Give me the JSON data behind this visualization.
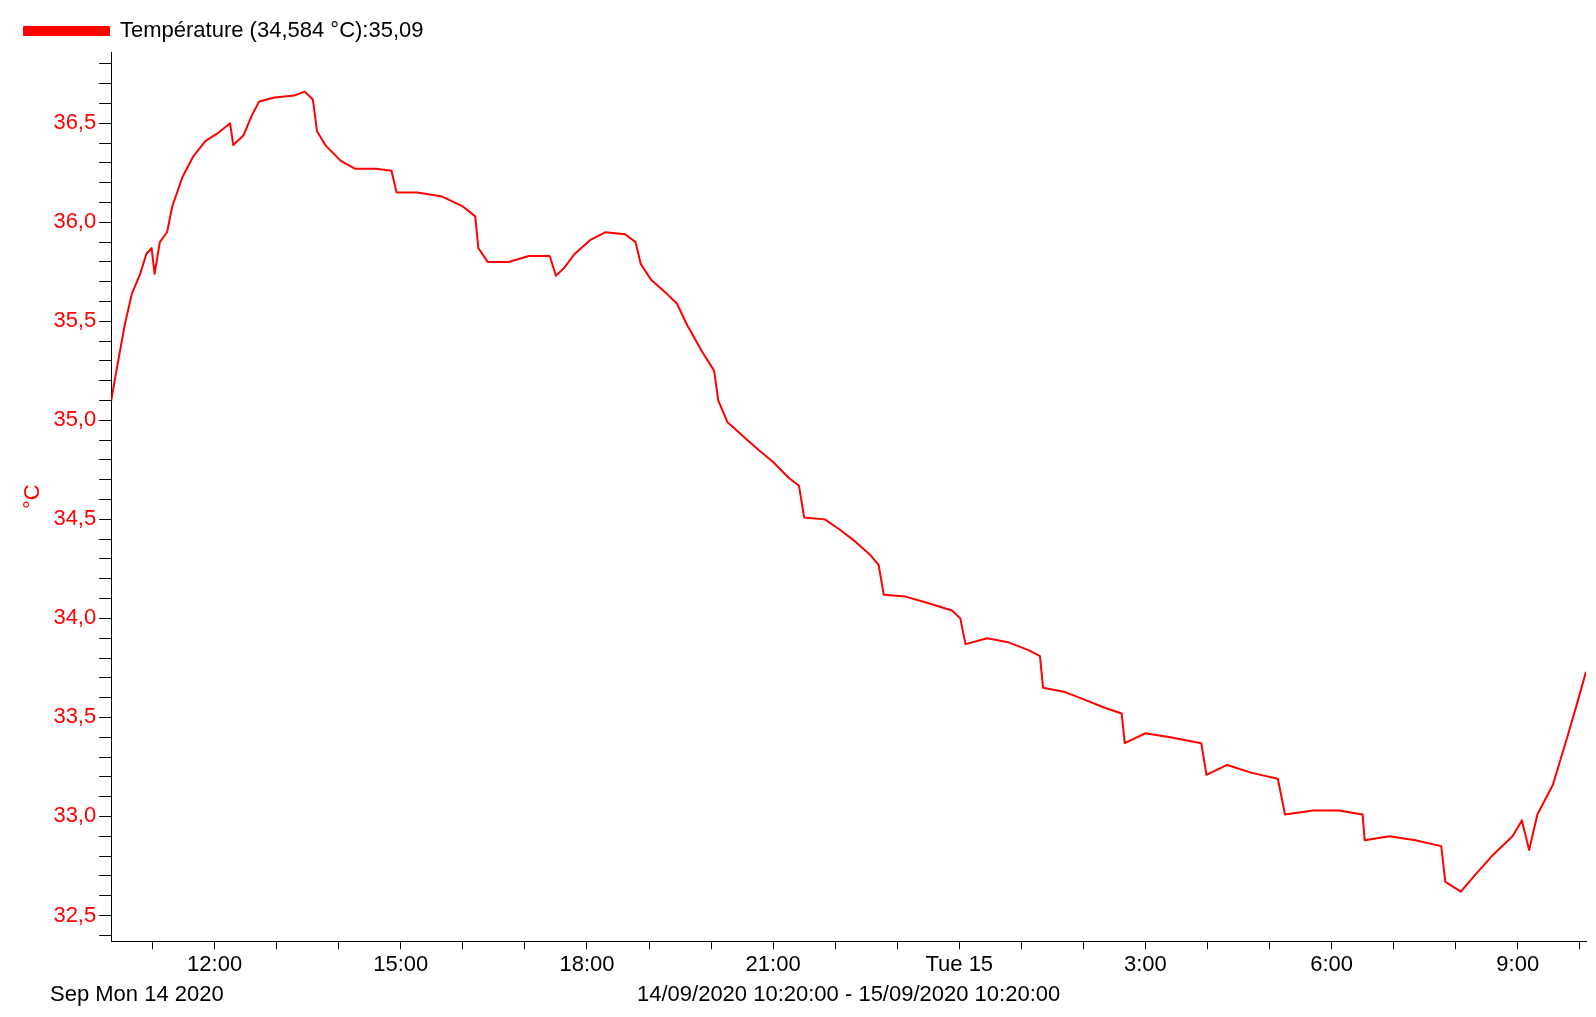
{
  "chart_data": {
    "type": "line",
    "xlabel": "14/09/2020 10:20:00 - 15/09/2020 10:20:00",
    "ylabel": "°C",
    "legend": "top left",
    "grid": false,
    "marker": "none",
    "line_style": "solid",
    "annotations": [
      "Sep Mon 14 2020"
    ],
    "xlim": [
      "2020-09-14T10:20",
      "2020-09-15T10:06"
    ],
    "xticks": [
      {
        "value": "2020-09-14T11:00",
        "label": null
      },
      {
        "value": "2020-09-14T12:00",
        "label": "12:00"
      },
      {
        "value": "2020-09-14T13:00",
        "label": null
      },
      {
        "value": "2020-09-14T14:00",
        "label": null
      },
      {
        "value": "2020-09-14T15:00",
        "label": "15:00"
      },
      {
        "value": "2020-09-14T16:00",
        "label": null
      },
      {
        "value": "2020-09-14T17:00",
        "label": null
      },
      {
        "value": "2020-09-14T18:00",
        "label": "18:00"
      },
      {
        "value": "2020-09-14T19:00",
        "label": null
      },
      {
        "value": "2020-09-14T20:00",
        "label": null
      },
      {
        "value": "2020-09-14T21:00",
        "label": "21:00"
      },
      {
        "value": "2020-09-14T22:00",
        "label": null
      },
      {
        "value": "2020-09-14T23:00",
        "label": null
      },
      {
        "value": "2020-09-15T00:00",
        "label": "Tue 15"
      },
      {
        "value": "2020-09-15T01:00",
        "label": null
      },
      {
        "value": "2020-09-15T02:00",
        "label": null
      },
      {
        "value": "2020-09-15T03:00",
        "label": "3:00"
      },
      {
        "value": "2020-09-15T04:00",
        "label": null
      },
      {
        "value": "2020-09-15T05:00",
        "label": null
      },
      {
        "value": "2020-09-15T06:00",
        "label": "6:00"
      },
      {
        "value": "2020-09-15T07:00",
        "label": null
      },
      {
        "value": "2020-09-15T08:00",
        "label": null
      },
      {
        "value": "2020-09-15T09:00",
        "label": "9:00"
      },
      {
        "value": "2020-09-15T10:00",
        "label": null
      }
    ],
    "ylim": [
      32.37,
      36.86
    ],
    "yticks": [
      {
        "value": 32.4,
        "label": null
      },
      {
        "value": 32.5,
        "label": "32,5"
      },
      {
        "value": 32.6,
        "label": null
      },
      {
        "value": 32.7,
        "label": null
      },
      {
        "value": 32.8,
        "label": null
      },
      {
        "value": 32.9,
        "label": null
      },
      {
        "value": 33.0,
        "label": "33,0"
      },
      {
        "value": 33.1,
        "label": null
      },
      {
        "value": 33.2,
        "label": null
      },
      {
        "value": 33.3,
        "label": null
      },
      {
        "value": 33.4,
        "label": null
      },
      {
        "value": 33.5,
        "label": "33,5"
      },
      {
        "value": 33.6,
        "label": null
      },
      {
        "value": 33.7,
        "label": null
      },
      {
        "value": 33.8,
        "label": null
      },
      {
        "value": 33.9,
        "label": null
      },
      {
        "value": 34.0,
        "label": "34,0"
      },
      {
        "value": 34.1,
        "label": null
      },
      {
        "value": 34.2,
        "label": null
      },
      {
        "value": 34.3,
        "label": null
      },
      {
        "value": 34.4,
        "label": null
      },
      {
        "value": 34.5,
        "label": "34,5"
      },
      {
        "value": 34.6,
        "label": null
      },
      {
        "value": 34.7,
        "label": null
      },
      {
        "value": 34.8,
        "label": null
      },
      {
        "value": 34.9,
        "label": null
      },
      {
        "value": 35.0,
        "label": "35,0"
      },
      {
        "value": 35.1,
        "label": null
      },
      {
        "value": 35.2,
        "label": null
      },
      {
        "value": 35.3,
        "label": null
      },
      {
        "value": 35.4,
        "label": null
      },
      {
        "value": 35.5,
        "label": "35,5"
      },
      {
        "value": 35.6,
        "label": null
      },
      {
        "value": 35.7,
        "label": null
      },
      {
        "value": 35.8,
        "label": null
      },
      {
        "value": 35.9,
        "label": null
      },
      {
        "value": 36.0,
        "label": "36,0"
      },
      {
        "value": 36.1,
        "label": null
      },
      {
        "value": 36.2,
        "label": null
      },
      {
        "value": 36.3,
        "label": null
      },
      {
        "value": 36.4,
        "label": null
      },
      {
        "value": 36.5,
        "label": "36,5"
      },
      {
        "value": 36.6,
        "label": null
      },
      {
        "value": 36.7,
        "label": null
      },
      {
        "value": 36.8,
        "label": null
      }
    ],
    "x": [
      "2020-09-14T10:20",
      "2020-09-14T10:25",
      "2020-09-14T10:33",
      "2020-09-14T10:40",
      "2020-09-14T10:48",
      "2020-09-14T10:54",
      "2020-09-14T10:59",
      "2020-09-14T11:02",
      "2020-09-14T11:07",
      "2020-09-14T11:14",
      "2020-09-14T11:19",
      "2020-09-14T11:29",
      "2020-09-14T11:39",
      "2020-09-14T11:51",
      "2020-09-14T12:03",
      "2020-09-14T12:15",
      "2020-09-14T12:18",
      "2020-09-14T12:28",
      "2020-09-14T12:36",
      "2020-09-14T12:43",
      "2020-09-14T12:58",
      "2020-09-14T13:17",
      "2020-09-14T13:27",
      "2020-09-14T13:35",
      "2020-09-14T13:39",
      "2020-09-14T13:47",
      "2020-09-14T14:02",
      "2020-09-14T14:16",
      "2020-09-14T14:36",
      "2020-09-14T14:51",
      "2020-09-14T14:56",
      "2020-09-14T15:16",
      "2020-09-14T15:40",
      "2020-09-14T16:00",
      "2020-09-14T16:12",
      "2020-09-14T16:15",
      "2020-09-14T16:24",
      "2020-09-14T16:44",
      "2020-09-14T17:04",
      "2020-09-14T17:24",
      "2020-09-14T17:30",
      "2020-09-14T17:38",
      "2020-09-14T17:48",
      "2020-09-14T18:03",
      "2020-09-14T18:18",
      "2020-09-14T18:37",
      "2020-09-14T18:47",
      "2020-09-14T18:52",
      "2020-09-14T19:02",
      "2020-09-14T19:17",
      "2020-09-14T19:27",
      "2020-09-14T19:37",
      "2020-09-14T19:51",
      "2020-09-14T20:03",
      "2020-09-14T20:07",
      "2020-09-14T20:16",
      "2020-09-14T20:31",
      "2020-09-14T20:46",
      "2020-09-14T21:00",
      "2020-09-14T21:15",
      "2020-09-14T21:25",
      "2020-09-14T21:30",
      "2020-09-14T21:50",
      "2020-09-14T22:04",
      "2020-09-14T22:19",
      "2020-09-14T22:34",
      "2020-09-14T22:42",
      "2020-09-14T22:47",
      "2020-09-14T23:08",
      "2020-09-14T23:28",
      "2020-09-14T23:53",
      "2020-09-15T00:01",
      "2020-09-15T00:06",
      "2020-09-15T00:27",
      "2020-09-15T00:47",
      "2020-09-15T01:07",
      "2020-09-15T01:18",
      "2020-09-15T01:21",
      "2020-09-15T01:41",
      "2020-09-15T02:01",
      "2020-09-15T02:20",
      "2020-09-15T02:37",
      "2020-09-15T02:40",
      "2020-09-15T03:00",
      "2020-09-15T03:24",
      "2020-09-15T03:54",
      "2020-09-15T03:59",
      "2020-09-15T04:19",
      "2020-09-15T04:43",
      "2020-09-15T05:08",
      "2020-09-15T05:15",
      "2020-09-15T05:42",
      "2020-09-15T06:07",
      "2020-09-15T06:30",
      "2020-09-15T06:32",
      "2020-09-15T06:56",
      "2020-09-15T07:21",
      "2020-09-15T07:46",
      "2020-09-15T07:50",
      "2020-09-15T08:05",
      "2020-09-15T08:18",
      "2020-09-15T08:35",
      "2020-09-15T08:55",
      "2020-09-15T09:04",
      "2020-09-15T09:11",
      "2020-09-15T09:19",
      "2020-09-15T09:34",
      "2020-09-15T09:49",
      "2020-09-15T09:59",
      "2020-09-15T10:06"
    ],
    "series": [
      {
        "name": "Température (34,584 °C):35,09",
        "color": "#ff0000",
        "values": [
          35.1,
          35.25,
          35.48,
          35.64,
          35.74,
          35.84,
          35.87,
          35.74,
          35.9,
          35.95,
          36.08,
          36.23,
          36.33,
          36.41,
          36.45,
          36.5,
          36.39,
          36.44,
          36.54,
          36.61,
          36.63,
          36.64,
          36.66,
          36.62,
          36.46,
          36.39,
          36.31,
          36.27,
          36.27,
          36.26,
          36.15,
          36.15,
          36.13,
          36.08,
          36.03,
          35.87,
          35.8,
          35.8,
          35.83,
          35.83,
          35.73,
          35.77,
          35.84,
          35.91,
          35.95,
          35.94,
          35.9,
          35.79,
          35.71,
          35.64,
          35.59,
          35.48,
          35.35,
          35.25,
          35.1,
          34.99,
          34.92,
          34.85,
          34.79,
          34.71,
          34.67,
          34.51,
          34.5,
          34.45,
          34.39,
          34.32,
          34.27,
          34.12,
          34.11,
          34.08,
          34.04,
          34.0,
          33.87,
          33.9,
          33.88,
          33.84,
          33.81,
          33.65,
          33.63,
          33.59,
          33.55,
          33.52,
          33.37,
          33.42,
          33.4,
          33.37,
          33.21,
          33.26,
          33.22,
          33.19,
          33.01,
          33.03,
          33.03,
          33.01,
          32.88,
          32.9,
          32.88,
          32.85,
          32.67,
          32.62,
          32.7,
          32.8,
          32.9,
          32.98,
          32.83,
          33.01,
          33.16,
          33.42,
          33.6,
          33.73
        ]
      }
    ]
  }
}
